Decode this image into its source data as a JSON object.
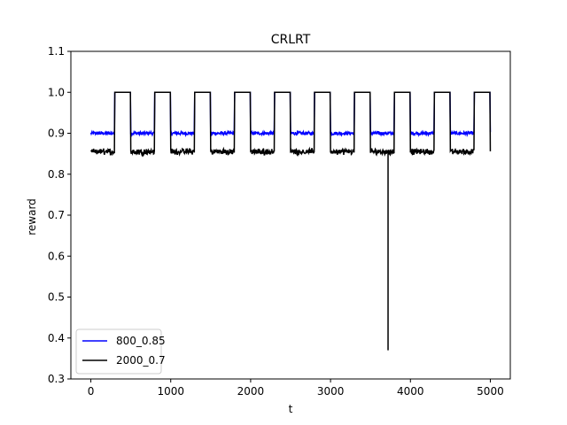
{
  "chart_data": {
    "type": "line",
    "title": "CRLRT",
    "xlabel": "t",
    "ylabel": "reward",
    "xlim": [
      -250,
      5250
    ],
    "ylim": [
      0.3,
      1.1
    ],
    "xticks": [
      0,
      1000,
      2000,
      3000,
      4000,
      5000
    ],
    "xtick_labels": [
      "0",
      "1000",
      "2000",
      "3000",
      "4000",
      "5000"
    ],
    "yticks": [
      0.3,
      0.4,
      0.5,
      0.6,
      0.7,
      0.8,
      0.9,
      1.0,
      1.1
    ],
    "ytick_labels": [
      "0.3",
      "0.4",
      "0.5",
      "0.6",
      "0.7",
      "0.8",
      "0.9",
      "1.0",
      "1.1"
    ],
    "grid": false,
    "legend_position": "lower-left",
    "period": 500,
    "high_start_offset": 300,
    "t_end": 5000,
    "series": [
      {
        "name": "800_0.85",
        "color": "#0000ff",
        "low_value": 0.9,
        "high_value": 1.0,
        "noise": 0.004
      },
      {
        "name": "2000_0.7",
        "color": "#000000",
        "low_value": 0.855,
        "high_value": 1.0,
        "noise": 0.005,
        "spikes": [
          {
            "t": 3720,
            "value": 0.37
          }
        ]
      }
    ]
  }
}
